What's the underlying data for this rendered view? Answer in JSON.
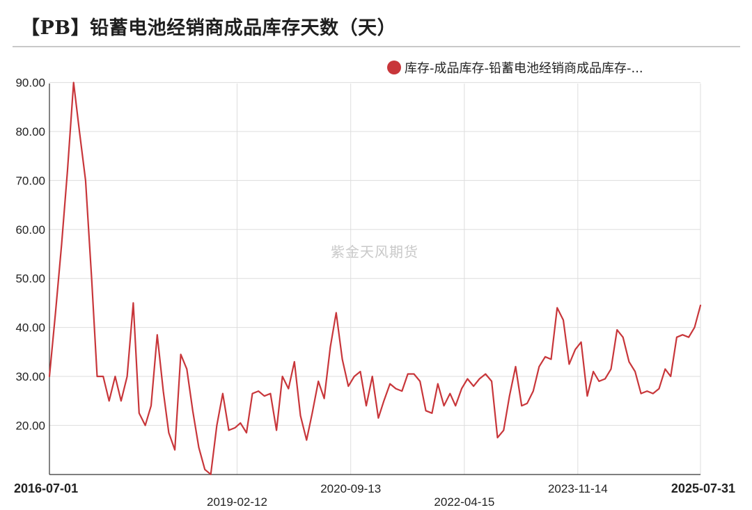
{
  "title": "【PB】铅蓄电池经销商成品库存天数（天）",
  "watermark": "紫金天风期货",
  "colors": {
    "series": "#c8363a",
    "grid": "#dddddd",
    "axis": "#333333"
  },
  "chart_data": {
    "type": "line",
    "title": "【PB】铅蓄电池经销商成品库存天数（天）",
    "xlabel": "",
    "ylabel": "",
    "ylim": [
      10,
      90
    ],
    "yticks": [
      "90.00",
      "80.00",
      "70.00",
      "60.00",
      "50.00",
      "40.00",
      "30.00",
      "20.00"
    ],
    "xlim": [
      "2016-07-01",
      "2025-07-31"
    ],
    "xticks": [
      "2016-07-01",
      "2019-02-12",
      "2020-09-13",
      "2022-04-15",
      "2023-11-14",
      "2025-07-31"
    ],
    "grid": true,
    "legend_position": "top",
    "series": [
      {
        "name": "库存-成品库存-铅蓄电池经销商成品库存-...",
        "x": [
          "2016-07-01",
          "2016-08-01",
          "2016-09-01",
          "2016-10-01",
          "2016-11-01",
          "2016-12-01",
          "2017-01-01",
          "2017-02-01",
          "2017-03-01",
          "2017-04-01",
          "2017-05-01",
          "2017-06-01",
          "2017-07-01",
          "2017-08-01",
          "2017-09-01",
          "2017-10-01",
          "2017-11-01",
          "2017-12-01",
          "2018-01-01",
          "2018-02-01",
          "2018-03-01",
          "2018-04-01",
          "2018-05-01",
          "2018-06-01",
          "2018-07-01",
          "2018-08-01",
          "2018-09-01",
          "2018-10-01",
          "2018-11-01",
          "2018-12-01",
          "2019-01-01",
          "2019-02-01",
          "2019-03-01",
          "2019-04-01",
          "2019-05-01",
          "2019-06-01",
          "2019-07-01",
          "2019-08-01",
          "2019-09-01",
          "2019-10-01",
          "2019-11-01",
          "2019-12-01",
          "2020-01-01",
          "2020-02-01",
          "2020-03-01",
          "2020-04-01",
          "2020-05-01",
          "2020-06-01",
          "2020-07-01",
          "2020-08-01",
          "2020-09-01",
          "2020-10-01",
          "2020-11-01",
          "2020-12-01",
          "2021-01-01",
          "2021-02-01",
          "2021-03-01",
          "2021-04-01",
          "2021-05-01",
          "2021-06-01",
          "2021-07-01",
          "2021-08-01",
          "2021-09-01",
          "2021-10-01",
          "2021-11-01",
          "2021-12-01",
          "2022-01-01",
          "2022-02-01",
          "2022-03-01",
          "2022-04-01",
          "2022-05-01",
          "2022-06-01",
          "2022-07-01",
          "2022-08-01",
          "2022-09-01",
          "2022-10-01",
          "2022-11-01",
          "2022-12-01",
          "2023-01-01",
          "2023-02-01",
          "2023-03-01",
          "2023-04-01",
          "2023-05-01",
          "2023-06-01",
          "2023-07-01",
          "2023-08-01",
          "2023-09-01",
          "2023-10-01",
          "2023-11-01",
          "2023-12-01",
          "2024-01-01",
          "2024-02-01",
          "2024-03-01",
          "2024-04-01",
          "2024-05-01",
          "2024-06-01",
          "2024-07-01",
          "2024-08-01",
          "2024-09-01",
          "2024-10-01",
          "2024-11-01",
          "2024-12-01",
          "2025-01-01",
          "2025-02-01",
          "2025-03-01",
          "2025-04-01",
          "2025-05-01",
          "2025-06-01",
          "2025-07-01",
          "2025-07-31"
        ],
        "values": [
          30,
          43,
          57,
          72,
          90,
          80,
          70,
          50,
          30,
          30,
          25,
          30,
          25,
          30,
          45,
          22.5,
          20,
          24,
          38.5,
          27,
          18.5,
          15,
          34.5,
          31.5,
          23,
          15.5,
          11,
          10,
          20,
          26.5,
          19,
          19.5,
          20.5,
          18.5,
          26.5,
          27,
          26,
          26.5,
          19,
          30,
          27.5,
          33,
          22,
          17,
          22.5,
          29,
          25.5,
          36,
          43,
          33.5,
          28,
          30,
          31,
          24,
          30,
          21.5,
          25,
          28.5,
          27.5,
          27,
          30.5,
          30.5,
          29,
          23,
          22.5,
          28.5,
          24,
          26.5,
          24,
          27.5,
          29.5,
          28,
          29.5,
          30.5,
          29,
          17.5,
          19,
          26,
          32,
          24,
          24.5,
          27,
          32,
          34,
          33.5,
          44,
          41.5,
          32.5,
          35.5,
          37,
          26,
          31,
          29,
          29.5,
          31.5,
          39.5,
          38,
          33,
          31,
          26.5,
          27,
          26.5,
          27.5,
          31.5,
          30,
          38,
          38.5,
          38,
          40,
          44.5
        ]
      }
    ]
  }
}
